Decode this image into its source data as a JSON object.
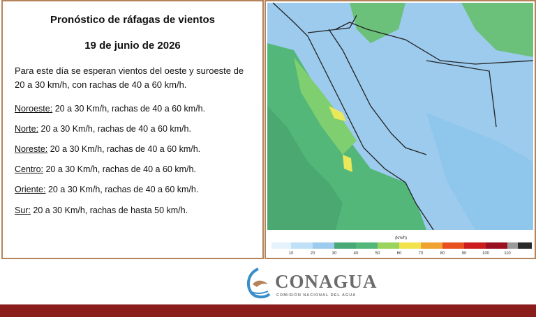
{
  "bulletin": {
    "title": "Pronóstico de ráfagas de vientos",
    "date": "19 de junio de 2026",
    "intro": "Para este día se esperan vientos del oeste y suroeste de 20 a 30 km/h, con rachas de 40 a 60 km/h.",
    "regions": [
      {
        "name": "Noroeste:",
        "text": "20 a 30 Km/h, rachas de 40 a 60 km/h."
      },
      {
        "name": "Norte:",
        "text": "20 a 30 Km/h, rachas de 40 a 60 km/h."
      },
      {
        "name": "Noreste:",
        "text": "20 a 30 Km/h, rachas de 40 a 60 km/h."
      },
      {
        "name": "Centro:",
        "text": "20 a 30 Km/h, rachas de 40 a 60 km/h."
      },
      {
        "name": "Oriente:",
        "text": "20 a 30 Km/h, rachas de 40 a 60 km/h."
      },
      {
        "name": "Sur:",
        "text": "20 a 30 Km/h, rachas de hasta 50 km/h."
      }
    ]
  },
  "map": {
    "legend": {
      "unit": "(km/h)",
      "ticks": [
        10,
        20,
        30,
        40,
        50,
        60,
        70,
        80,
        90,
        100,
        110
      ]
    }
  },
  "logo": {
    "name": "CONAGUA",
    "subtitle": "COMISIÓN NACIONAL DEL AGUA"
  }
}
